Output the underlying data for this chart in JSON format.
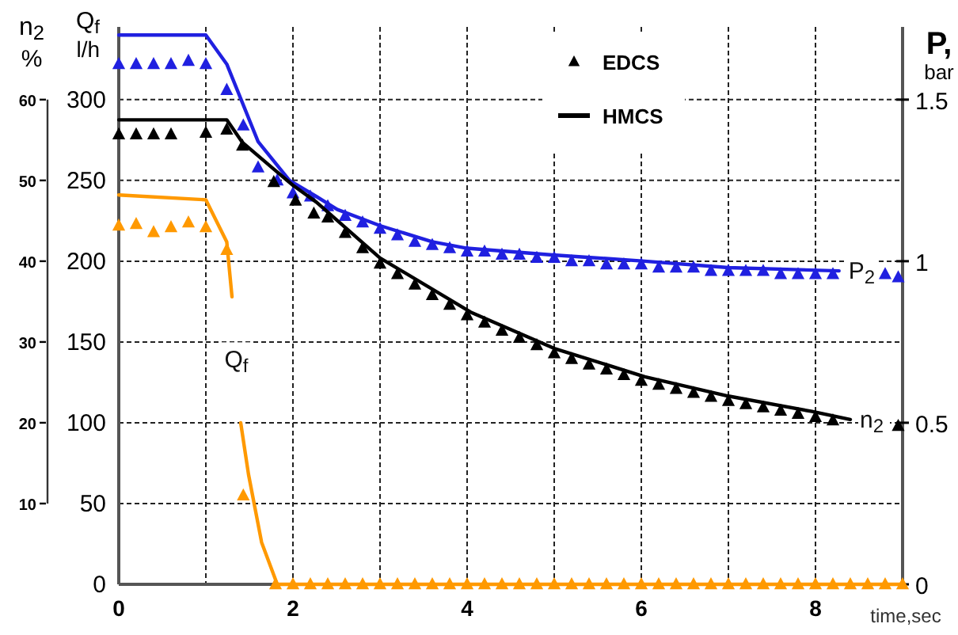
{
  "chart_data": {
    "type": "line",
    "xlabel": "time,sec",
    "ylabel": "Q$_{f}$ l/h",
    "y2label": "P, bar",
    "y3label": "n$_{2}$ %",
    "xlim": [
      0,
      9
    ],
    "xticks": [
      0,
      {
        "value": 1,
        "label": null
      },
      2,
      {
        "value": 3,
        "label": null
      },
      4,
      {
        "value": 5,
        "label": null
      },
      6,
      {
        "value": 7,
        "label": null
      },
      8
    ],
    "ylim": [
      0,
      345
    ],
    "yticks": [
      0,
      50,
      100,
      150,
      200,
      250,
      300
    ],
    "y2lim": [
      0,
      1.725
    ],
    "y2ticks": [
      0,
      0.5,
      1,
      1.5
    ],
    "y3lim": [
      0,
      69
    ],
    "y3ticks": [
      10,
      20,
      30,
      40,
      50,
      60
    ],
    "grid": true,
    "legend": "top",
    "line_style": "solid",
    "annotations": [
      "P$_{2}$",
      "n$_{2}$",
      "Q$_{f}$"
    ],
    "series": [
      {
        "axis": "y2",
        "color": "#2020e0",
        "x": [
          0,
          1,
          1.24,
          1.6,
          1.96,
          2.27,
          2.51,
          3.0,
          3.6,
          4.0,
          4.95,
          6.04,
          7.0,
          8.27
        ],
        "values": [
          1.7,
          1.7,
          1.61,
          1.37,
          1.25,
          1.2,
          1.16,
          1.11,
          1.06,
          1.04,
          1.02,
          1.0,
          0.98,
          0.97
        ]
      },
      {
        "type": "scatter",
        "marker": "triangle",
        "axis": "y2",
        "color": "#2020e0",
        "x": [
          0,
          0.2,
          0.4,
          0.6,
          0.8,
          1.0,
          1.24,
          1.43,
          1.6,
          1.82,
          2.0,
          2.2,
          2.4,
          2.6,
          2.8,
          3.0,
          3.2,
          3.4,
          3.6,
          3.8,
          4.0,
          4.2,
          4.4,
          4.6,
          4.8,
          5.0,
          5.2,
          5.4,
          5.6,
          5.8,
          6.0,
          6.2,
          6.4,
          6.6,
          6.8,
          7.0,
          7.2,
          7.4,
          7.6,
          7.8,
          8.0,
          8.2,
          8.8,
          8.95
        ],
        "values": [
          1.61,
          1.61,
          1.61,
          1.61,
          1.62,
          1.61,
          1.53,
          1.42,
          1.29,
          1.25,
          1.21,
          1.2,
          1.17,
          1.14,
          1.12,
          1.1,
          1.08,
          1.06,
          1.05,
          1.04,
          1.03,
          1.03,
          1.02,
          1.02,
          1.01,
          1.01,
          1.0,
          1.0,
          0.99,
          0.99,
          0.99,
          0.98,
          0.98,
          0.98,
          0.97,
          0.97,
          0.97,
          0.97,
          0.96,
          0.96,
          0.96,
          0.96,
          0.96,
          0.95
        ]
      },
      {
        "type": "scatter",
        "name": "EDCS",
        "marker": "triangle",
        "axis": "y3",
        "color": "#000000",
        "x": [
          0,
          0.2,
          0.4,
          0.6,
          1.0,
          1.24,
          1.42,
          1.78,
          2.03,
          2.24,
          2.4,
          2.6,
          2.8,
          3.0,
          3.2,
          3.4,
          3.6,
          3.8,
          4.0,
          4.2,
          4.4,
          4.6,
          4.8,
          5.0,
          5.2,
          5.4,
          5.6,
          5.8,
          6.0,
          6.2,
          6.4,
          6.6,
          6.8,
          7.0,
          7.2,
          7.4,
          7.6,
          7.8,
          8.0,
          8.2,
          8.95
        ],
        "values": [
          55.7,
          55.7,
          55.7,
          55.7,
          55.9,
          56.3,
          54.3,
          49.8,
          47.5,
          45.9,
          45.4,
          43.5,
          41.6,
          39.7,
          38.4,
          37.1,
          35.8,
          34.6,
          33.3,
          32.4,
          31.4,
          30.5,
          29.6,
          28.6,
          27.9,
          27.2,
          26.6,
          25.9,
          25.2,
          24.7,
          24.2,
          23.7,
          23.2,
          22.7,
          22.3,
          21.9,
          21.5,
          21.1,
          20.7,
          20.3,
          19.6
        ]
      },
      {
        "name": "HMCS",
        "axis": "y3",
        "color": "#000000",
        "x": [
          0,
          1.0,
          1.24,
          1.42,
          1.78,
          2.0,
          2.27,
          3.0,
          4.04,
          5.0,
          6.04,
          7.0,
          7.96,
          8.4
        ],
        "values": [
          57.5,
          57.5,
          57.5,
          54.7,
          51.4,
          49.4,
          47.3,
          40.4,
          33.7,
          29.2,
          25.7,
          23.3,
          21.4,
          20.4
        ]
      },
      {
        "color": "#ff9900",
        "x": [
          0,
          1.0,
          1.24,
          1.3,
          1.35,
          1.4,
          1.49,
          1.64,
          1.82,
          9
        ],
        "values": [
          241,
          238,
          212,
          178,
          null,
          100,
          68,
          26,
          0,
          0
        ]
      },
      {
        "type": "scatter",
        "marker": "triangle",
        "color": "#ff9900",
        "x": [
          0,
          0.2,
          0.4,
          0.6,
          0.8,
          1.0,
          1.24,
          1.43,
          1.8,
          2.0,
          2.2,
          2.4,
          2.6,
          2.8,
          3.0,
          3.2,
          3.4,
          3.6,
          3.8,
          4.0,
          4.2,
          4.4,
          4.6,
          4.8,
          5.0,
          5.2,
          5.4,
          5.6,
          5.8,
          6.0,
          6.2,
          6.4,
          6.6,
          6.8,
          7.0,
          7.2,
          7.4,
          7.6,
          7.8,
          8.0,
          8.2,
          8.4,
          8.6,
          8.8,
          9.0
        ],
        "values": [
          222,
          223,
          218,
          221,
          224,
          221,
          207,
          55,
          0,
          0,
          0,
          0,
          0,
          0,
          0,
          0,
          0,
          0,
          0,
          0,
          0,
          0,
          0,
          0,
          0,
          0,
          0,
          0,
          0,
          0,
          0,
          0,
          0,
          0,
          0,
          0,
          0,
          0,
          0,
          0,
          0,
          0,
          0,
          0,
          0
        ]
      }
    ]
  }
}
